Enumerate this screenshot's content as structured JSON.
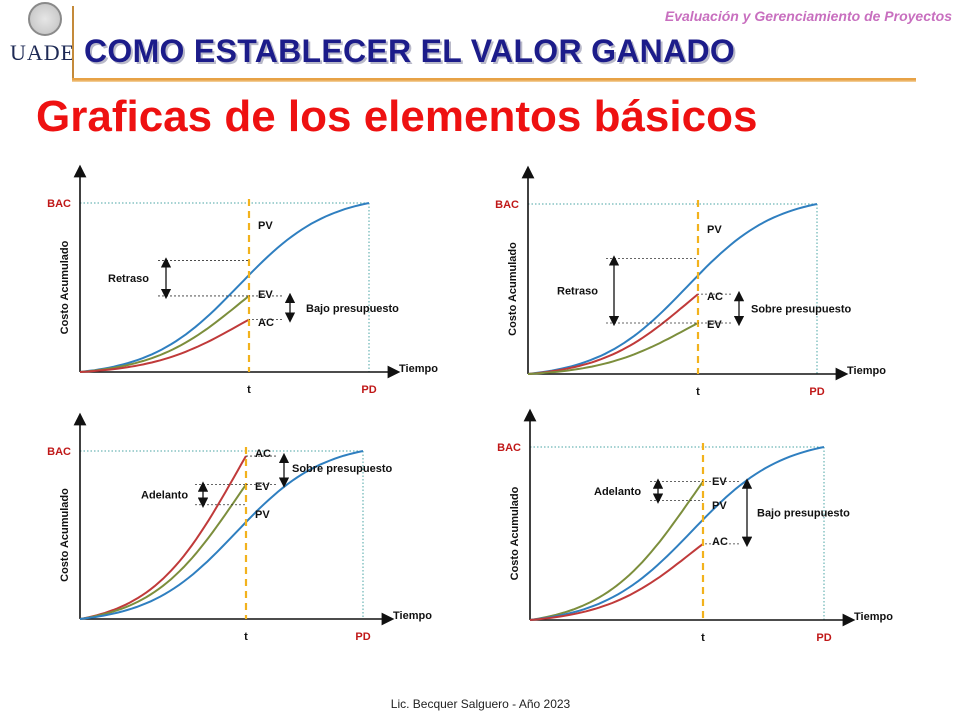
{
  "header": {
    "course": "Evaluación y Gerenciamiento de Proyectos",
    "title": "COMO ESTABLECER EL VALOR GANADO",
    "subtitle": "Graficas de los elementos básicos",
    "logo": "UADE"
  },
  "footer": "Lic. Becquer Salguero - Año 2023",
  "colors": {
    "PV": "#2f7fc0",
    "EV": "#7c8e3c",
    "AC": "#c03a3a",
    "t_line": "#f2b21d",
    "ref": "#4aa5a5"
  },
  "chart_data": [
    {
      "type": "line",
      "panel": "top-left",
      "ylabel": "Costo Acumulado",
      "xlabel": "Tiempo",
      "y_tick": "BAC",
      "x_ticks": [
        "t",
        "PD"
      ],
      "series": [
        {
          "name": "PV",
          "end_of_curve": 1.0,
          "value_at_t": 0.66
        },
        {
          "name": "EV",
          "value_at_t": 0.45
        },
        {
          "name": "AC",
          "value_at_t": 0.31
        }
      ],
      "annotations": [
        {
          "text": "Retraso",
          "between": [
            "PV",
            "EV"
          ]
        },
        {
          "text": "Bajo presupuesto",
          "between": [
            "EV",
            "AC"
          ]
        }
      ]
    },
    {
      "type": "line",
      "panel": "top-right",
      "ylabel": "Costo Acumulado",
      "xlabel": "Tiempo",
      "y_tick": "BAC",
      "x_ticks": [
        "t",
        "PD"
      ],
      "series": [
        {
          "name": "PV",
          "end_of_curve": 1.0,
          "value_at_t": 0.68
        },
        {
          "name": "AC",
          "value_at_t": 0.47
        },
        {
          "name": "EV",
          "value_at_t": 0.3
        }
      ],
      "annotations": [
        {
          "text": "Retraso",
          "between": [
            "PV",
            "EV"
          ]
        },
        {
          "text": "Sobre presupuesto",
          "between": [
            "AC",
            "EV"
          ]
        }
      ]
    },
    {
      "type": "line",
      "panel": "bottom-left",
      "ylabel": "Costo Acumulado",
      "xlabel": "Tiempo",
      "y_tick": "BAC",
      "x_ticks": [
        "t",
        "PD"
      ],
      "series": [
        {
          "name": "AC",
          "value_at_t": 0.97
        },
        {
          "name": "EV",
          "value_at_t": 0.8
        },
        {
          "name": "PV",
          "end_of_curve": 1.0,
          "value_at_t": 0.68
        }
      ],
      "annotations": [
        {
          "text": "Adelanto",
          "between": [
            "EV",
            "PV"
          ]
        },
        {
          "text": "Sobre presupuesto",
          "between": [
            "AC",
            "EV"
          ]
        }
      ]
    },
    {
      "type": "line",
      "panel": "bottom-right",
      "ylabel": "Costo Acumulado",
      "xlabel": "Tiempo",
      "y_tick": "BAC",
      "x_ticks": [
        "t",
        "PD"
      ],
      "series": [
        {
          "name": "EV",
          "value_at_t": 0.8
        },
        {
          "name": "PV",
          "end_of_curve": 1.0,
          "value_at_t": 0.69
        },
        {
          "name": "AC",
          "value_at_t": 0.44
        }
      ],
      "annotations": [
        {
          "text": "Adelanto",
          "between": [
            "EV",
            "PV"
          ]
        },
        {
          "text": "Bajo presupuesto",
          "between": [
            "EV",
            "AC"
          ]
        }
      ]
    }
  ]
}
